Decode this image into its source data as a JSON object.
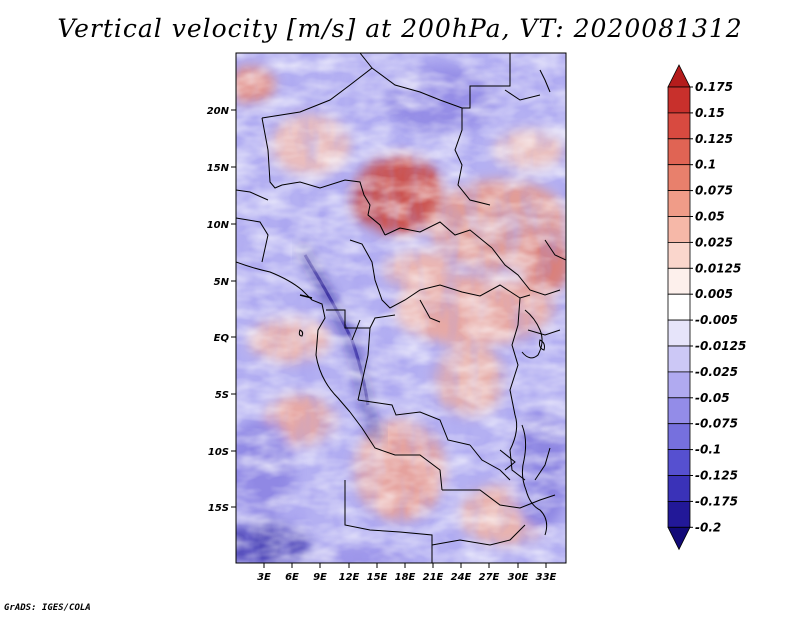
{
  "title": "Vertical velocity [m/s] at 200hPa, VT: 2020081312",
  "credit": "GrADS: IGES/COLA",
  "map": {
    "lat_labels": [
      "20N",
      "15N",
      "10N",
      "5N",
      "EQ",
      "5S",
      "10S",
      "15S"
    ],
    "lon_labels": [
      "3E",
      "6E",
      "9E",
      "12E",
      "15E",
      "18E",
      "21E",
      "24E",
      "27E",
      "30E",
      "33E"
    ]
  },
  "colorbar": {
    "levels": [
      "0.175",
      "0.15",
      "0.125",
      "0.1",
      "0.075",
      "0.05",
      "0.025",
      "0.0125",
      "0.005",
      "-0.005",
      "-0.0125",
      "-0.025",
      "-0.05",
      "-0.075",
      "-0.1",
      "-0.125",
      "-0.175",
      "-0.2"
    ],
    "colors": [
      "#b41c1c",
      "#c8302c",
      "#d84a40",
      "#e06454",
      "#e8806c",
      "#f09c88",
      "#f6b8a8",
      "#fad6cc",
      "#fdf0ec",
      "#ffffff",
      "#e6e4fa",
      "#ccc8f6",
      "#b0aaf0",
      "#938ce8",
      "#7670de",
      "#5650d0",
      "#3a32b8",
      "#221898",
      "#120a78"
    ]
  },
  "colors": {
    "positive": "#c8302c",
    "negative": "#3a32b8",
    "neutral": "#ffffff"
  }
}
